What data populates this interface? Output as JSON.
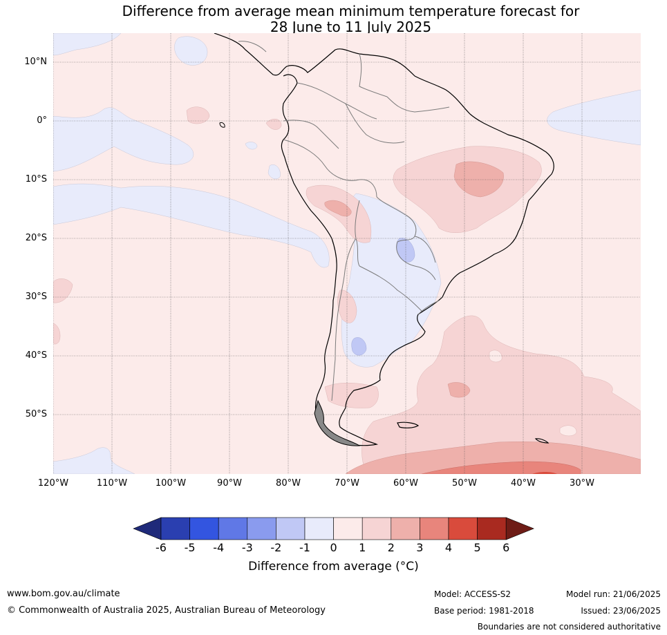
{
  "title_line1": "Difference from average mean minimum temperature forecast for",
  "title_line2": "28 June to 11 July 2025",
  "lat_labels": [
    "10°N",
    "0°",
    "10°S",
    "20°S",
    "30°S",
    "40°S",
    "50°S"
  ],
  "lon_labels": [
    "120°W",
    "110°W",
    "100°W",
    "90°W",
    "80°W",
    "70°W",
    "60°W",
    "50°W",
    "40°W",
    "30°W"
  ],
  "colorbar": {
    "ticks": [
      "-6",
      "-5",
      "-4",
      "-3",
      "-2",
      "-1",
      "0",
      "1",
      "2",
      "3",
      "4",
      "5",
      "6"
    ],
    "colors": [
      "#1f2a7a",
      "#2a3fb0",
      "#3355e0",
      "#6078e6",
      "#8a9bee",
      "#c0c8f5",
      "#e8ebfb",
      "#fcebea",
      "#f6d4d4",
      "#eeb0ab",
      "#e8857c",
      "#d94b3c",
      "#a92a20",
      "#6e1c16"
    ],
    "label": "Difference from average (°C)"
  },
  "footer": {
    "website": "www.bom.gov.au/climate",
    "copyright": "© Commonwealth of Australia 2025, Australian Bureau of Meteorology",
    "model": "Model: ACCESS-S2",
    "base_period": "Base period: 1981-2018",
    "model_run": "Model run: 21/06/2025",
    "issued": "Issued: 23/06/2025",
    "disclaimer": "Boundaries are not considered authoritative"
  }
}
